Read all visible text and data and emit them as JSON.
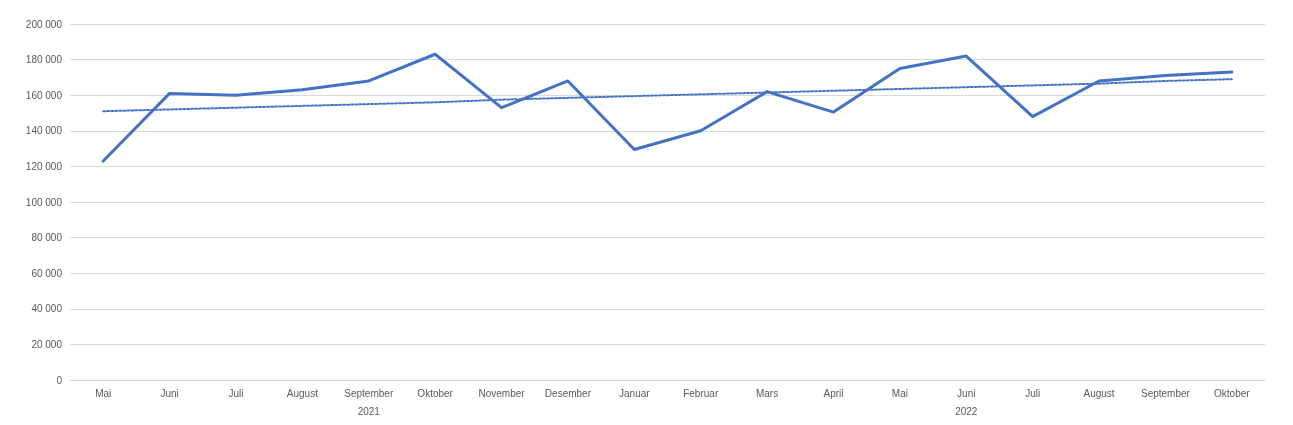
{
  "chart_data": {
    "type": "line",
    "categories": [
      "Mai",
      "Juni",
      "Juli",
      "August",
      "September",
      "Oktober",
      "November",
      "Desember",
      "Januar",
      "Februar",
      "Mars",
      "April",
      "Mai",
      "Juni",
      "Juli",
      "August",
      "September",
      "Oktober"
    ],
    "series": [
      {
        "color": "#4472c4",
        "values": [
          123000,
          161000,
          160000,
          163000,
          168000,
          183000,
          153000,
          168000,
          129500,
          140000,
          162000,
          150500,
          175000,
          182000,
          148000,
          168000,
          171000,
          173000
        ]
      },
      {
        "color": "#4472c4",
        "line_style": "dotted",
        "values": [
          151000,
          152000,
          153000,
          154000,
          155000,
          156000,
          157500,
          158500,
          159500,
          160500,
          161500,
          162500,
          163500,
          164500,
          165500,
          166500,
          168000,
          169000
        ]
      }
    ],
    "annotations": [
      "2021",
      "2022"
    ],
    "ylim": [
      0,
      200000
    ],
    "yticks": [
      {
        "value": 0,
        "label": "0"
      },
      {
        "value": 20000,
        "label": "20 000"
      },
      {
        "value": 40000,
        "label": "40 000"
      },
      {
        "value": 60000,
        "label": "60 000"
      },
      {
        "value": 80000,
        "label": "80 000"
      },
      {
        "value": 100000,
        "label": "100 000"
      },
      {
        "value": 120000,
        "label": "120 000"
      },
      {
        "value": 140000,
        "label": "140 000"
      },
      {
        "value": 160000,
        "label": "160 000"
      },
      {
        "value": 180000,
        "label": "180 000"
      },
      {
        "value": 200000,
        "label": "200 000"
      }
    ],
    "grid": "y",
    "marker": "none"
  }
}
